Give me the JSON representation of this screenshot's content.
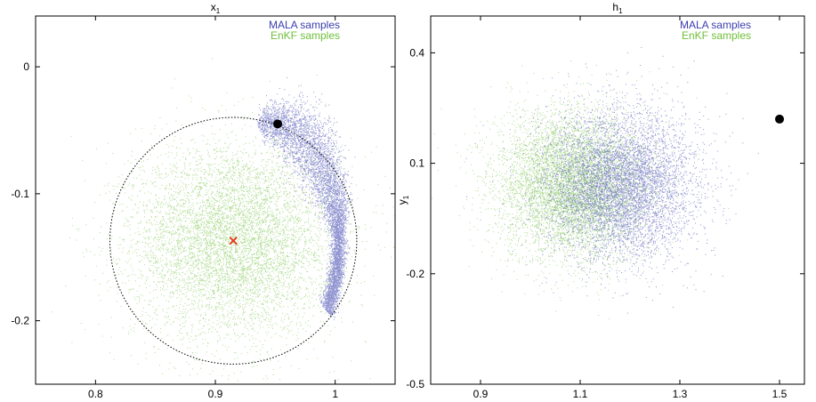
{
  "colors": {
    "mala": "#3b3fae",
    "enkf": "#6fbf3a",
    "marker": "#e0401b"
  },
  "chart_data": [
    {
      "type": "scatter",
      "title": "x",
      "title_sub": "1",
      "xlim": [
        0.75,
        1.05
      ],
      "ylim": [
        -0.25,
        0.04
      ],
      "xticks": [
        0.8,
        0.9,
        1
      ],
      "xtick_labels": [
        "0.8",
        "0.9",
        "1"
      ],
      "yticks": [
        0,
        -0.1,
        -0.2
      ],
      "ytick_labels": [
        "0",
        "-0.1",
        "-0.2"
      ],
      "legend_position": "top-right",
      "series": [
        {
          "name": "MALA samples",
          "distribution": "banana",
          "count": 6000,
          "arc_center": [
            0.945,
            -0.138
          ],
          "arc_radius": 0.105,
          "angle_range_deg": [
            100,
            -35
          ],
          "spread": 0.009,
          "color_key": "mala"
        },
        {
          "name": "EnKF samples",
          "distribution": "gaussian",
          "count": 7000,
          "mean": [
            0.915,
            -0.137
          ],
          "std": [
            0.042,
            0.038
          ],
          "color_key": "enkf"
        }
      ],
      "circle": {
        "center": [
          0.915,
          -0.137
        ],
        "radius": 0.1
      },
      "point": [
        0.952,
        -0.045
      ],
      "cross": [
        0.915,
        -0.137
      ]
    },
    {
      "type": "scatter",
      "title": "h",
      "title_sub": "1",
      "ylabel": "y",
      "ylabel_sub": "1",
      "xlim": [
        0.8,
        1.55
      ],
      "ylim": [
        -0.5,
        0.5
      ],
      "xticks": [
        0.9,
        1.1,
        1.3,
        1.5
      ],
      "xtick_labels": [
        "0.9",
        "1.1",
        "1.3",
        "1.5"
      ],
      "yticks": [
        0.4,
        0.1,
        -0.2,
        -0.5
      ],
      "ytick_labels": [
        "0.4",
        "0.1",
        "-0.2",
        "-0.5"
      ],
      "legend_position": "top-right",
      "series": [
        {
          "name": "MALA samples",
          "distribution": "gaussian",
          "count": 6500,
          "mean": [
            1.18,
            0.04
          ],
          "std": [
            0.075,
            0.1
          ],
          "color_key": "mala"
        },
        {
          "name": "EnKF samples",
          "distribution": "gaussian",
          "count": 6500,
          "mean": [
            1.08,
            0.04
          ],
          "std": [
            0.075,
            0.1
          ],
          "color_key": "enkf"
        }
      ],
      "point": [
        1.5,
        0.22
      ]
    }
  ]
}
